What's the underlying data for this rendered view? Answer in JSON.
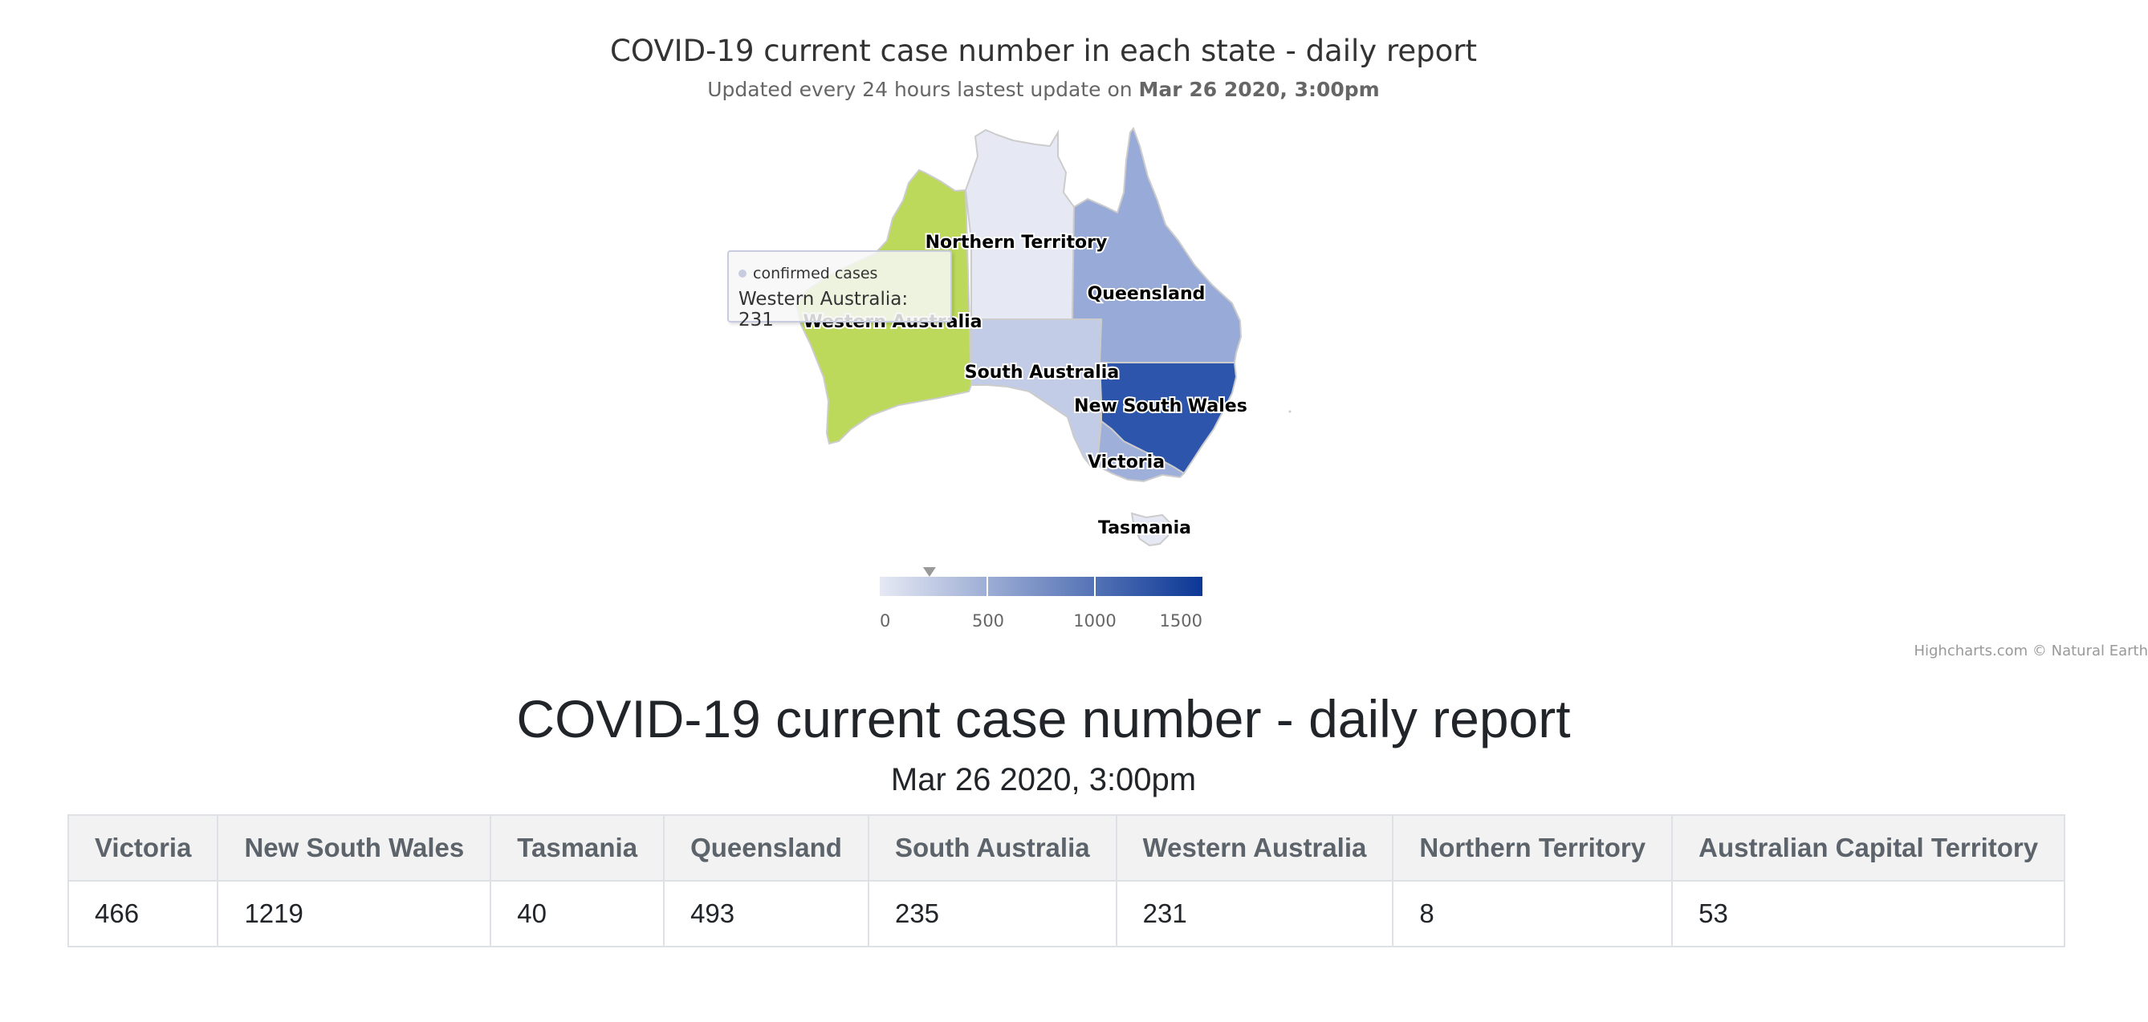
{
  "map_chart": {
    "title": "COVID-19 current case number in each state - daily report",
    "subtitle_prefix": "Updated every 24 hours lastest update on ",
    "subtitle_date": "Mar 26 2020, 3:00pm",
    "regions": [
      {
        "name": "Western Australia",
        "label": "Western Australia",
        "color": "#bcd95b",
        "state": "hover"
      },
      {
        "name": "Northern Territory",
        "label": "Northern Territory",
        "color": "#e6e9f4"
      },
      {
        "name": "Queensland",
        "label": "Queensland",
        "color": "#98aad8"
      },
      {
        "name": "South Australia",
        "label": "South Australia",
        "color": "#c3cce6"
      },
      {
        "name": "New South Wales",
        "label": "New South Wales",
        "color": "#2c55ab"
      },
      {
        "name": "Victoria",
        "label": "Victoria",
        "color": "#9eafd9"
      },
      {
        "name": "Tasmania",
        "label": "Tasmania",
        "color": "#e6e9f4"
      }
    ],
    "tooltip": {
      "series_name": "confirmed cases",
      "point_text": "Western Australia: 231"
    },
    "color_axis": {
      "min": 0,
      "max": 1500,
      "ticks": [
        "0",
        "500",
        "1000",
        "1500"
      ],
      "min_color": "#e6e9f4",
      "max_color": "#0b3796",
      "marker_value": 231
    },
    "credits": "Highcharts.com © Natural Earth"
  },
  "report": {
    "title": "COVID-19 current case number - daily report",
    "date": "Mar 26 2020, 3:00pm",
    "headers": [
      "Victoria",
      "New South Wales",
      "Tasmania",
      "Queensland",
      "South Australia",
      "Western Australia",
      "Northern Territory",
      "Australian Capital Territory"
    ],
    "values": [
      "466",
      "1219",
      "40",
      "493",
      "235",
      "231",
      "8",
      "53"
    ]
  }
}
